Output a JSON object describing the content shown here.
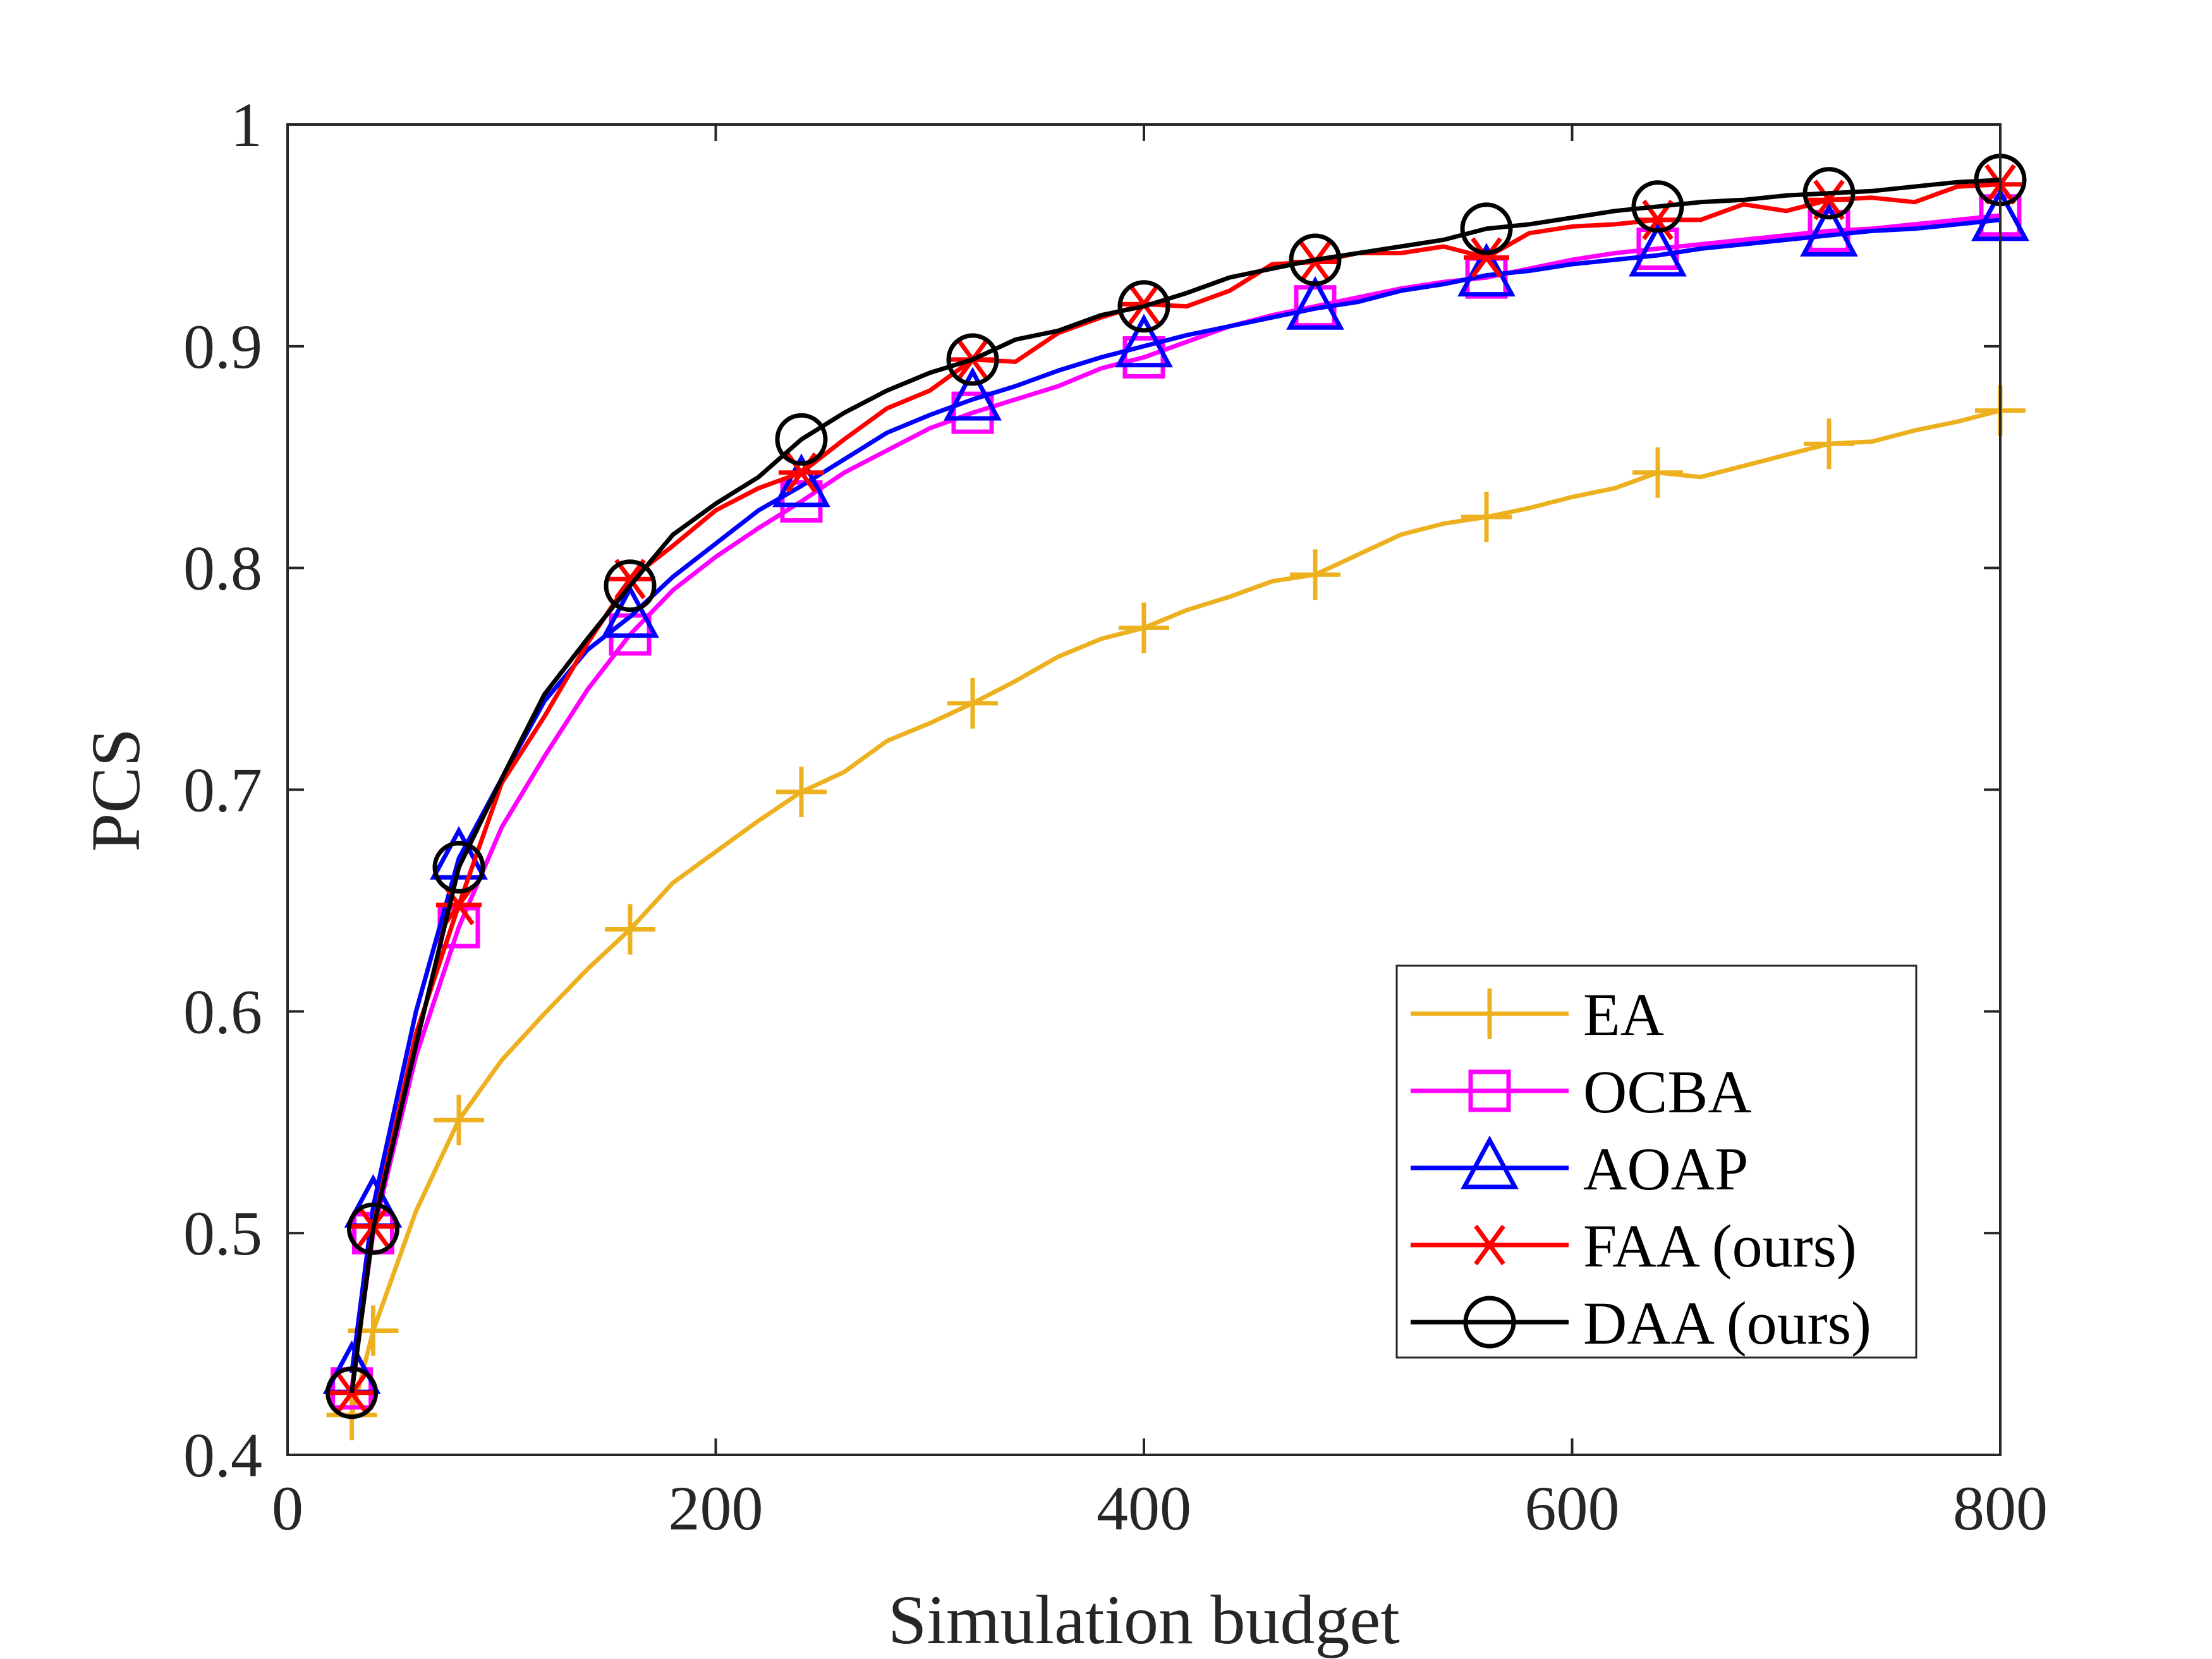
{
  "chart_data": {
    "type": "line",
    "xlabel": "Simulation budget",
    "ylabel": "PCS",
    "xlim": [
      0,
      800
    ],
    "ylim": [
      0.4,
      1.0
    ],
    "xticks": [
      0,
      200,
      400,
      600,
      800
    ],
    "xtick_labels": [
      "0",
      "200",
      "400",
      "600",
      "800"
    ],
    "yticks": [
      0.4,
      0.5,
      0.6,
      0.7,
      0.8,
      0.9,
      1.0
    ],
    "ytick_labels": [
      "0.4",
      "0.5",
      "0.6",
      "0.7",
      "0.8",
      "0.9",
      "1"
    ],
    "grid": false,
    "legend_position": "bottom-right",
    "series": [
      {
        "name": "EA",
        "color": "#EDB120",
        "marker": "plus",
        "x": [
          30,
          40,
          60,
          80,
          100,
          120,
          140,
          160,
          180,
          200,
          220,
          240,
          260,
          280,
          300,
          320,
          340,
          360,
          380,
          400,
          420,
          440,
          460,
          480,
          500,
          520,
          540,
          560,
          580,
          600,
          620,
          640,
          660,
          680,
          700,
          720,
          740,
          760,
          780,
          800
        ],
        "y": [
          0.418,
          0.456,
          0.51,
          0.551,
          0.578,
          0.599,
          0.619,
          0.637,
          0.658,
          0.672,
          0.686,
          0.699,
          0.708,
          0.722,
          0.73,
          0.739,
          0.749,
          0.76,
          0.768,
          0.773,
          0.781,
          0.787,
          0.794,
          0.797,
          0.806,
          0.815,
          0.82,
          0.823,
          0.827,
          0.832,
          0.836,
          0.843,
          0.841,
          0.846,
          0.851,
          0.856,
          0.857,
          0.862,
          0.866,
          0.871
        ],
        "marker_x": [
          30,
          40,
          80,
          160,
          240,
          320,
          400,
          480,
          560,
          640,
          720,
          800
        ],
        "marker_y": [
          0.418,
          0.456,
          0.551,
          0.637,
          0.699,
          0.739,
          0.773,
          0.797,
          0.823,
          0.843,
          0.856,
          0.871
        ]
      },
      {
        "name": "OCBA",
        "color": "#FF00FF",
        "marker": "square",
        "x": [
          30,
          40,
          60,
          80,
          100,
          120,
          140,
          160,
          180,
          200,
          220,
          240,
          260,
          280,
          300,
          320,
          340,
          360,
          380,
          400,
          420,
          440,
          460,
          480,
          500,
          520,
          540,
          560,
          580,
          600,
          620,
          640,
          660,
          680,
          700,
          720,
          740,
          760,
          780,
          800
        ],
        "y": [
          0.43,
          0.5,
          0.58,
          0.638,
          0.683,
          0.715,
          0.745,
          0.77,
          0.79,
          0.805,
          0.818,
          0.83,
          0.843,
          0.853,
          0.863,
          0.87,
          0.876,
          0.882,
          0.89,
          0.895,
          0.902,
          0.909,
          0.914,
          0.918,
          0.922,
          0.926,
          0.929,
          0.931,
          0.935,
          0.939,
          0.942,
          0.944,
          0.946,
          0.948,
          0.95,
          0.952,
          0.953,
          0.955,
          0.957,
          0.959
        ],
        "marker_x": [
          30,
          40,
          80,
          160,
          240,
          320,
          400,
          480,
          560,
          640,
          720,
          800
        ],
        "marker_y": [
          0.43,
          0.5,
          0.638,
          0.77,
          0.83,
          0.87,
          0.895,
          0.918,
          0.931,
          0.944,
          0.952,
          0.959
        ]
      },
      {
        "name": "AOAP",
        "color": "#0000FF",
        "marker": "triangle",
        "x": [
          30,
          40,
          60,
          80,
          100,
          120,
          140,
          160,
          180,
          200,
          220,
          240,
          260,
          280,
          300,
          320,
          340,
          360,
          380,
          400,
          420,
          440,
          460,
          480,
          500,
          520,
          540,
          560,
          580,
          600,
          620,
          640,
          660,
          680,
          700,
          720,
          740,
          760,
          780,
          800
        ],
        "y": [
          0.437,
          0.512,
          0.6,
          0.669,
          0.705,
          0.74,
          0.763,
          0.778,
          0.796,
          0.811,
          0.826,
          0.837,
          0.849,
          0.861,
          0.869,
          0.876,
          0.882,
          0.889,
          0.895,
          0.9,
          0.905,
          0.909,
          0.913,
          0.917,
          0.92,
          0.925,
          0.928,
          0.932,
          0.934,
          0.937,
          0.939,
          0.941,
          0.944,
          0.946,
          0.948,
          0.95,
          0.952,
          0.953,
          0.955,
          0.957
        ],
        "marker_x": [
          30,
          40,
          80,
          160,
          240,
          320,
          400,
          480,
          560,
          640,
          720,
          800
        ],
        "marker_y": [
          0.437,
          0.512,
          0.669,
          0.778,
          0.837,
          0.876,
          0.9,
          0.917,
          0.932,
          0.941,
          0.95,
          0.957
        ]
      },
      {
        "name": "FAA (ours)",
        "color": "#FF0000",
        "marker": "asterisk",
        "x": [
          30,
          40,
          60,
          80,
          100,
          120,
          140,
          160,
          180,
          200,
          220,
          240,
          260,
          280,
          300,
          320,
          340,
          360,
          380,
          400,
          420,
          440,
          460,
          480,
          500,
          520,
          540,
          560,
          580,
          600,
          620,
          640,
          660,
          680,
          700,
          720,
          740,
          760,
          780,
          800
        ],
        "y": [
          0.428,
          0.503,
          0.59,
          0.648,
          0.703,
          0.733,
          0.766,
          0.795,
          0.81,
          0.826,
          0.836,
          0.843,
          0.858,
          0.872,
          0.88,
          0.894,
          0.893,
          0.906,
          0.913,
          0.919,
          0.918,
          0.925,
          0.937,
          0.938,
          0.942,
          0.942,
          0.945,
          0.94,
          0.951,
          0.954,
          0.955,
          0.957,
          0.957,
          0.964,
          0.961,
          0.966,
          0.967,
          0.965,
          0.972,
          0.973
        ],
        "marker_x": [
          30,
          40,
          80,
          160,
          240,
          320,
          400,
          480,
          560,
          640,
          720,
          800
        ],
        "marker_y": [
          0.428,
          0.503,
          0.648,
          0.795,
          0.843,
          0.894,
          0.919,
          0.938,
          0.94,
          0.957,
          0.966,
          0.973
        ]
      },
      {
        "name": "DAA (ours)",
        "color": "#000000",
        "marker": "circle",
        "x": [
          30,
          40,
          60,
          80,
          100,
          120,
          140,
          160,
          180,
          200,
          220,
          240,
          260,
          280,
          300,
          320,
          340,
          360,
          380,
          400,
          420,
          440,
          460,
          480,
          500,
          520,
          540,
          560,
          580,
          600,
          620,
          640,
          660,
          680,
          700,
          720,
          740,
          760,
          780,
          800
        ],
        "y": [
          0.428,
          0.502,
          0.585,
          0.665,
          0.705,
          0.743,
          0.768,
          0.792,
          0.815,
          0.829,
          0.841,
          0.858,
          0.87,
          0.88,
          0.888,
          0.894,
          0.903,
          0.907,
          0.914,
          0.918,
          0.924,
          0.931,
          0.935,
          0.939,
          0.942,
          0.945,
          0.948,
          0.953,
          0.955,
          0.958,
          0.961,
          0.963,
          0.965,
          0.966,
          0.968,
          0.969,
          0.97,
          0.972,
          0.974,
          0.975
        ],
        "marker_x": [
          30,
          40,
          80,
          160,
          240,
          320,
          400,
          480,
          560,
          640,
          720,
          800
        ],
        "marker_y": [
          0.428,
          0.502,
          0.665,
          0.792,
          0.858,
          0.894,
          0.918,
          0.939,
          0.953,
          0.963,
          0.969,
          0.975
        ]
      }
    ]
  }
}
